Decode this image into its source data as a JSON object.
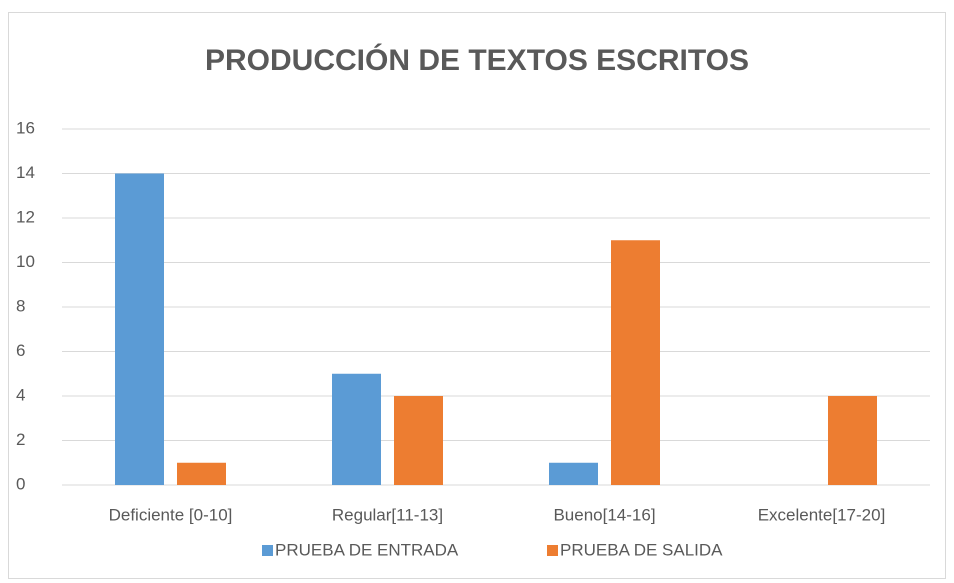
{
  "chart_data": {
    "type": "bar",
    "title": "PRODUCCIÓN DE TEXTOS ESCRITOS",
    "categories": [
      "Deficiente [0-10]",
      "Regular[11-13]",
      "Bueno[14-16]",
      "Excelente[17-20]"
    ],
    "series": [
      {
        "name": "PRUEBA DE ENTRADA",
        "color": "#5b9bd5",
        "values": [
          14,
          5,
          1,
          0
        ]
      },
      {
        "name": "PRUEBA DE SALIDA",
        "color": "#ed7d31",
        "values": [
          1,
          4,
          11,
          4
        ]
      }
    ],
    "ylim": [
      0,
      16
    ],
    "yticks": [
      0,
      2,
      4,
      6,
      8,
      10,
      12,
      14,
      16
    ],
    "grid": true,
    "legend": "bottom"
  }
}
